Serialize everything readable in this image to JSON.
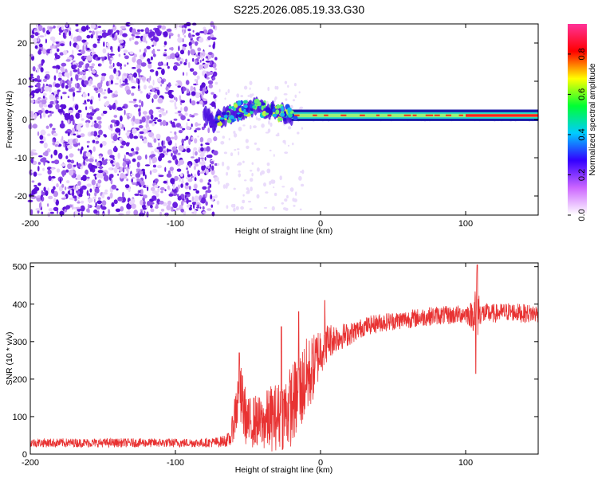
{
  "title": "S225.2026.085.19.33.G30",
  "chart_data": [
    {
      "type": "heatmap",
      "name": "spectrogram",
      "title": "S225.2026.085.19.33.G30",
      "xlabel": "Height of straight line (km)",
      "ylabel": "Frequency (Hz)",
      "xlim": [
        -200,
        150
      ],
      "ylim": [
        -25,
        25
      ],
      "xticks": [
        -200,
        -100,
        0,
        100
      ],
      "xtick_labels": [
        "-200",
        "-100",
        "0",
        "100"
      ],
      "yticks": [
        -20,
        -10,
        0,
        10,
        20
      ],
      "ytick_labels": [
        "-20",
        "-10",
        "0",
        "10",
        "20"
      ],
      "colorbar": {
        "label": "Normalized spectral amplitude",
        "range": [
          0,
          0.95
        ],
        "ticks": [
          0.0,
          0.2,
          0.4,
          0.6,
          0.8
        ],
        "tick_labels": [
          "0.0",
          "0.2",
          "0.4",
          "0.6",
          "0.8"
        ],
        "colors": [
          "#ffffff",
          "#cc66ff",
          "#3300ff",
          "#00ccff",
          "#00ff33",
          "#ffff00",
          "#ff0000",
          "#ff3399"
        ]
      },
      "regions": {
        "noise_x_range": [
          -200,
          -72
        ],
        "noise_freq_range": [
          -25,
          25
        ],
        "onset_x": -72,
        "signal_start_x": -20,
        "signal_frequency_hz": 1,
        "carrier_color": "#ff2020",
        "noise_color": "#7a2be6"
      },
      "signal_track": [
        {
          "x": -75,
          "f": -1.0
        },
        {
          "x": -65,
          "f": 1.0
        },
        {
          "x": -55,
          "f": 2.5
        },
        {
          "x": -45,
          "f": 3.5
        },
        {
          "x": -35,
          "f": 2.5
        },
        {
          "x": -25,
          "f": 1.5
        },
        {
          "x": -15,
          "f": 1.0
        },
        {
          "x": 0,
          "f": 1.0
        },
        {
          "x": 150,
          "f": 1.0
        }
      ]
    },
    {
      "type": "line",
      "name": "snr",
      "xlabel": "Height of straight line (km)",
      "ylabel": "SNR (10 * v/v)",
      "xlim": [
        -200,
        150
      ],
      "ylim": [
        0,
        510
      ],
      "xticks": [
        -200,
        -100,
        0,
        100
      ],
      "xtick_labels": [
        "-200",
        "-100",
        "0",
        "100"
      ],
      "yticks": [
        0,
        100,
        200,
        300,
        400,
        500
      ],
      "ytick_labels": [
        "0",
        "100",
        "200",
        "300",
        "400",
        "500"
      ],
      "line_color": "#e83232",
      "series": [
        {
          "name": "SNR",
          "x": [
            -200,
            -170,
            -140,
            -110,
            -80,
            -70,
            -62,
            -58,
            -55,
            -50,
            -45,
            -40,
            -35,
            -30,
            -25,
            -20,
            -15,
            -10,
            -5,
            0,
            5,
            10,
            20,
            30,
            40,
            50,
            60,
            70,
            80,
            90,
            100,
            105,
            108,
            110,
            120,
            130,
            140,
            150
          ],
          "mean": [
            30,
            30,
            30,
            30,
            30,
            32,
            40,
            130,
            150,
            80,
            90,
            80,
            95,
            100,
            110,
            130,
            160,
            200,
            230,
            280,
            300,
            310,
            320,
            340,
            350,
            355,
            360,
            365,
            370,
            370,
            375,
            370,
            400,
            375,
            375,
            380,
            375,
            375
          ],
          "spread": [
            12,
            12,
            12,
            12,
            12,
            14,
            20,
            80,
            90,
            70,
            70,
            70,
            90,
            90,
            100,
            110,
            110,
            110,
            90,
            70,
            50,
            40,
            30,
            25,
            25,
            25,
            25,
            25,
            25,
            25,
            25,
            40,
            100,
            30,
            25,
            25,
            25,
            25
          ],
          "spikes": [
            {
              "x": -56,
              "y": 270
            },
            {
              "x": -27,
              "y": 340
            },
            {
              "x": -15,
              "y": 380
            },
            {
              "x": 3,
              "y": 410
            },
            {
              "x": 108,
              "y": 505
            },
            {
              "x": 107,
              "y": 215
            }
          ]
        }
      ]
    }
  ]
}
